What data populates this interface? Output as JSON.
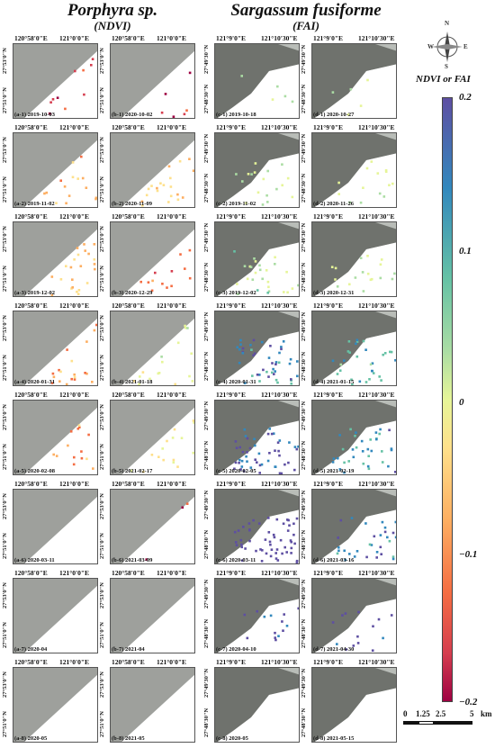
{
  "titles": {
    "left_main": "Porphyra sp.",
    "left_sub": "(NDVI)",
    "right_main": "Sargassum fusiforme",
    "right_sub": "(FAI)"
  },
  "legend": {
    "title": "NDVI or FAI",
    "max_label": "0.2",
    "upper_label": "0.1",
    "mid_label": "0",
    "lower_label": "−0.1",
    "min_label": "−0.2",
    "gradient_colors": [
      "#5e4fa2",
      "#3288bd",
      "#66c2a5",
      "#abdda4",
      "#e6f598",
      "#fee08b",
      "#fdae61",
      "#f46d43",
      "#d53e4f",
      "#9e0142"
    ]
  },
  "compass": {
    "n": "N",
    "s": "S",
    "e": "E",
    "w": "W",
    "icon": "compass-rose-icon"
  },
  "scalebar": {
    "labels": [
      "0",
      "1.25",
      "2.5",
      "5"
    ],
    "unit": "km"
  },
  "ticks": {
    "porphyra_x1": "120°58'0\"E",
    "porphyra_x2": "121°0'0\"E",
    "porphyra_y1": "27°53'0\"N",
    "porphyra_y2": "27°51'0\"N",
    "sargassum_x1": "121°9'0\"E",
    "sargassum_x2": "121°10'30\"E",
    "sargassum_y1": "27°49'30\"N",
    "sargassum_y2": "27°48'30\"N"
  },
  "rows": [
    {
      "captions": [
        "(a-1) 2019-10-03",
        "(b-1) 2020-10-02",
        "(c-1) 2019-10-18",
        "(d-1) 2020-10-27"
      ],
      "intensity": [
        0.15,
        0.1,
        0.05,
        0.05
      ],
      "hue": [
        0.0,
        0.0,
        0.55,
        0.55
      ]
    },
    {
      "captions": [
        "(a-2) 2019-11-02",
        "(b-2) 2020-11-09",
        "(c-2) 2019-11-02",
        "(d-2) 2020-11-26"
      ],
      "intensity": [
        0.25,
        0.3,
        0.2,
        0.15
      ],
      "hue": [
        0.25,
        0.3,
        0.5,
        0.5
      ]
    },
    {
      "captions": [
        "(a-3) 2019-12-02",
        "(b-3) 2020-12-29",
        "(c-3) 2019-12-02",
        "(d-3) 2020-12-31"
      ],
      "intensity": [
        0.35,
        0.3,
        0.3,
        0.2
      ],
      "hue": [
        0.3,
        0.15,
        0.55,
        0.55
      ]
    },
    {
      "captions": [
        "(a-4) 2020-01-31",
        "(b-4) 2021-01-18",
        "(c-4) 2020-01-31",
        "(d-4) 2021-01-15"
      ],
      "intensity": [
        0.35,
        0.3,
        0.5,
        0.35
      ],
      "hue": [
        0.2,
        0.45,
        0.8,
        0.7
      ]
    },
    {
      "captions": [
        "(a-5) 2020-02-08",
        "(b-5) 2021-02-17",
        "(c-5) 2020-02-05",
        "(d-5) 2021-02-19"
      ],
      "intensity": [
        0.35,
        0.3,
        0.55,
        0.4
      ],
      "hue": [
        0.2,
        0.4,
        0.85,
        0.75
      ]
    },
    {
      "captions": [
        "(a-6) 2020-03-11",
        "(b-6) 2021-03-09",
        "(c-6) 2020-03-11",
        "(d-6) 2021-03-16"
      ],
      "intensity": [
        0.0,
        0.05,
        0.6,
        0.35
      ],
      "hue": [
        0.0,
        0.0,
        0.95,
        0.8
      ]
    },
    {
      "captions": [
        "(a-7) 2020-04",
        "(b-7) 2021-04",
        "(c-7) 2020-04-10",
        "(d-7) 2021-04-30"
      ],
      "intensity": [
        0.0,
        0.0,
        0.15,
        0.15
      ],
      "hue": [
        0.0,
        0.0,
        0.9,
        0.9
      ]
    },
    {
      "captions": [
        "(a-8) 2020-05",
        "(b-8) 2021-05",
        "(c-8) 2020-05",
        "(d-8) 2021-05-15"
      ],
      "intensity": [
        0.0,
        0.0,
        0.0,
        0.0
      ],
      "hue": [
        0.0,
        0.0,
        0.0,
        0.0
      ]
    }
  ]
}
